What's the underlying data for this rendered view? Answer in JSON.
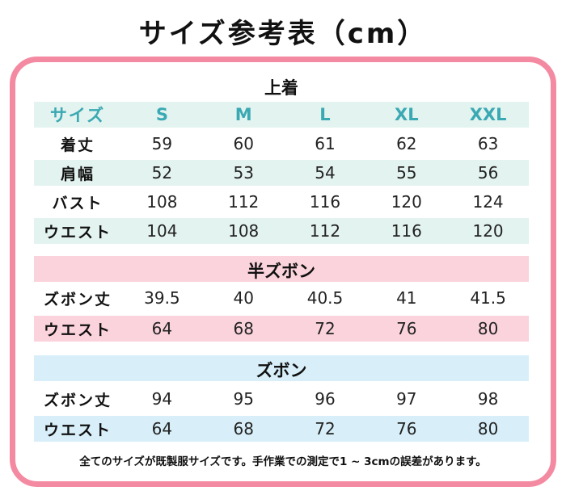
{
  "title": "サイズ参考表（cm）",
  "tops": {
    "title": "上着",
    "header": [
      "サイズ",
      "S",
      "M",
      "L",
      "XL",
      "XXL"
    ],
    "rows": [
      {
        "label": "着丈",
        "values": [
          "59",
          "60",
          "61",
          "62",
          "63"
        ]
      },
      {
        "label": "肩幅",
        "values": [
          "52",
          "53",
          "54",
          "55",
          "56"
        ]
      },
      {
        "label": "バスト",
        "values": [
          "108",
          "112",
          "116",
          "120",
          "124"
        ]
      },
      {
        "label": "ウエスト",
        "values": [
          "104",
          "108",
          "112",
          "116",
          "120"
        ]
      }
    ]
  },
  "shorts": {
    "title": "半ズボン",
    "rows": [
      {
        "label": "ズボン丈",
        "values": [
          "39.5",
          "40",
          "40.5",
          "41",
          "41.5"
        ]
      },
      {
        "label": "ウエスト",
        "values": [
          "64",
          "68",
          "72",
          "76",
          "80"
        ]
      }
    ]
  },
  "pants": {
    "title": "ズボン",
    "rows": [
      {
        "label": "ズボン丈",
        "values": [
          "94",
          "95",
          "96",
          "97",
          "98"
        ]
      },
      {
        "label": "ウエスト",
        "values": [
          "64",
          "68",
          "72",
          "76",
          "80"
        ]
      }
    ]
  },
  "note": "全てのサイズが既製服サイズです。手作業での測定で1 ~ 3cmの誤差があります。",
  "colors": {
    "frame": "#f48aa1",
    "mint": "#e3f3ef",
    "pink": "#fbd3dc",
    "blue": "#d8eff9",
    "header_text": "#3aa9b3"
  }
}
